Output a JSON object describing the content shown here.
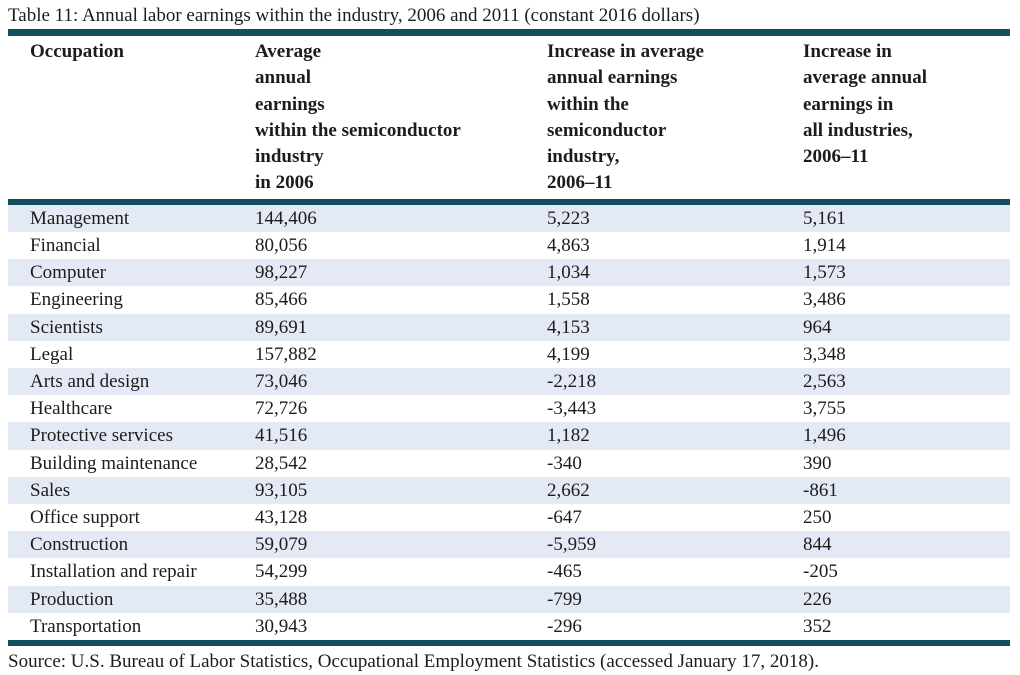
{
  "caption": "Table 11: Annual labor earnings within the industry, 2006 and 2011 (constant 2016 dollars)",
  "table": {
    "headers": [
      "Occupation",
      "Average\nannual\nearnings\nwithin the semiconductor\nindustry\nin 2006",
      "Increase in average\nannual earnings\nwithin the\nsemiconductor\nindustry,\n2006–11",
      "Increase in\naverage annual\nearnings in\nall industries,\n2006–11"
    ],
    "rows": [
      [
        "Management",
        "144,406",
        "5,223",
        "5,161"
      ],
      [
        "Financial",
        "80,056",
        "4,863",
        "1,914"
      ],
      [
        "Computer",
        "98,227",
        "1,034",
        "1,573"
      ],
      [
        "Engineering",
        "85,466",
        "1,558",
        "3,486"
      ],
      [
        "Scientists",
        "89,691",
        "4,153",
        "964"
      ],
      [
        "Legal",
        "157,882",
        "4,199",
        "3,348"
      ],
      [
        "Arts and design",
        "73,046",
        "-2,218",
        "2,563"
      ],
      [
        "Healthcare",
        "72,726",
        "-3,443",
        "3,755"
      ],
      [
        "Protective services",
        "41,516",
        "1,182",
        "1,496"
      ],
      [
        "Building maintenance",
        "28,542",
        "-340",
        "390"
      ],
      [
        "Sales",
        "93,105",
        "2,662",
        "-861"
      ],
      [
        "Office support",
        "43,128",
        "-647",
        "250"
      ],
      [
        "Construction",
        "59,079",
        "-5,959",
        "844"
      ],
      [
        "Installation and repair",
        "54,299",
        "-465",
        "-205"
      ],
      [
        "Production",
        "35,488",
        "-799",
        "226"
      ],
      [
        "Transportation",
        "30,943",
        "-296",
        "352"
      ]
    ]
  },
  "source": "Source: U.S. Bureau of Labor Statistics, Occupational Employment Statistics (accessed January 17, 2018).",
  "colors": {
    "rule": "#144f60",
    "row_shade": "#e4eaf5",
    "text": "#1c1c1c"
  },
  "chart_data": {
    "type": "table",
    "title": "Table 11: Annual labor earnings within the industry, 2006 and 2011 (constant 2016 dollars)",
    "columns": [
      "Occupation",
      "Average annual earnings within the semiconductor industry in 2006",
      "Increase in average annual earnings within the semiconductor industry, 2006–11",
      "Increase in average annual earnings in all industries, 2006–11"
    ],
    "occupations": [
      "Management",
      "Financial",
      "Computer",
      "Engineering",
      "Scientists",
      "Legal",
      "Arts and design",
      "Healthcare",
      "Protective services",
      "Building maintenance",
      "Sales",
      "Office support",
      "Construction",
      "Installation and repair",
      "Production",
      "Transportation"
    ],
    "avg_annual_earnings_2006": [
      144406,
      80056,
      98227,
      85466,
      89691,
      157882,
      73046,
      72726,
      41516,
      28542,
      93105,
      43128,
      59079,
      54299,
      35488,
      30943
    ],
    "increase_within_semiconductor_2006_11": [
      5223,
      4863,
      1034,
      1558,
      4153,
      4199,
      -2218,
      -3443,
      1182,
      -340,
      2662,
      -647,
      -5959,
      -465,
      -799,
      -296
    ],
    "increase_all_industries_2006_11": [
      5161,
      1914,
      1573,
      3486,
      964,
      3348,
      2563,
      3755,
      1496,
      390,
      -861,
      250,
      844,
      -205,
      226,
      352
    ]
  }
}
